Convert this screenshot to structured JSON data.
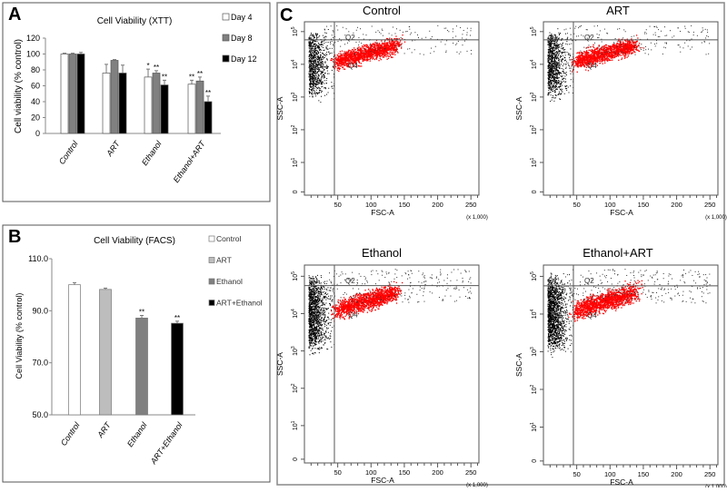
{
  "chart_data": [
    {
      "panel": "A",
      "type": "bar",
      "title": "Cell Viability (XTT)",
      "ylabel": "Cell viability (% control)",
      "xlabel": "",
      "ylim": [
        0,
        120
      ],
      "yticks": [
        "0",
        "20",
        "40",
        "60",
        "80",
        "100",
        "120"
      ],
      "categories": [
        "Control",
        "ART",
        "Ethanol",
        "Ethanol+ART"
      ],
      "series": [
        {
          "name": "Day 4",
          "color": "#ffffff",
          "values": [
            100,
            76,
            71,
            62
          ],
          "errors": [
            1,
            11,
            10,
            5
          ],
          "marks": [
            "",
            "",
            "*",
            "**"
          ]
        },
        {
          "name": "Day 8",
          "color": "#808080",
          "values": [
            100,
            92,
            76,
            66
          ],
          "errors": [
            1,
            1,
            3,
            5
          ],
          "marks": [
            "",
            "",
            "**",
            "**"
          ]
        },
        {
          "name": "Day 12",
          "color": "#000000",
          "values": [
            100,
            76,
            61,
            40
          ],
          "errors": [
            2,
            10,
            6,
            7
          ],
          "marks": [
            "",
            "",
            "**",
            "**"
          ]
        }
      ],
      "legend": "right"
    },
    {
      "panel": "B",
      "type": "bar",
      "title": "Cell Viability (FACS)",
      "ylabel": "Cell Viability (% control)",
      "xlabel": "",
      "ylim": [
        50,
        110
      ],
      "yticks": [
        "50.0",
        "70.0",
        "90.0",
        "110.0"
      ],
      "categories": [
        "Control",
        "ART",
        "Ethanol",
        "ART+Ethanol"
      ],
      "values": [
        100,
        98.2,
        87.2,
        85.2
      ],
      "errors": [
        0.8,
        0.5,
        1.0,
        0.8
      ],
      "colors": [
        "#ffffff",
        "#bdbdbd",
        "#808080",
        "#000000"
      ],
      "marks": [
        "",
        "",
        "**",
        "**"
      ],
      "legend_entries": [
        "Control",
        "ART",
        "Ethanol",
        "ART+Ethanol"
      ],
      "legend": "right"
    },
    {
      "panel": "C",
      "type": "scatter",
      "xlabel": "FSC-A",
      "ylabel": "SSC-A",
      "x_unit": "(x 1,000)",
      "xlim": [
        0,
        262
      ],
      "xticks": [
        "50",
        "100",
        "150",
        "200",
        "250"
      ],
      "yticks": [
        "0",
        "10",
        "10",
        "10",
        "10",
        "10"
      ],
      "ytick_exponents": [
        "",
        "1",
        "2",
        "3",
        "4",
        "5"
      ],
      "quadrants": [
        "Q1",
        "Q2",
        "Q3",
        "Q4"
      ],
      "gate_x": 45,
      "plots": [
        {
          "title": "Control",
          "density": 1.0
        },
        {
          "title": "ART",
          "density": 1.1
        },
        {
          "title": "Ethanol",
          "density": 1.5
        },
        {
          "title": "Ethanol+ART",
          "density": 1.7
        }
      ],
      "colors": {
        "gated": "#ff0000",
        "other": "#000000"
      }
    }
  ],
  "panel_labels": [
    "A",
    "B",
    "C"
  ]
}
